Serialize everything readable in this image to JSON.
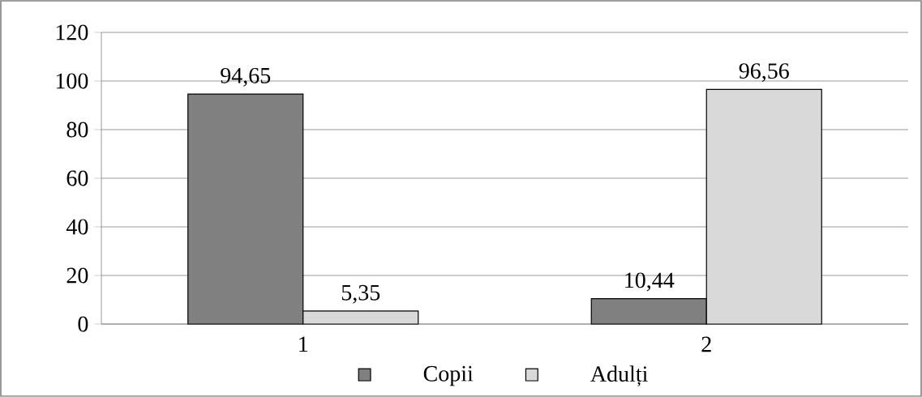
{
  "chart_data": {
    "type": "bar",
    "categories": [
      "1",
      "2"
    ],
    "series": [
      {
        "name": "Copii",
        "color": "#808080",
        "values": [
          94.65,
          10.44
        ],
        "value_labels": [
          "94,65",
          "10,44"
        ]
      },
      {
        "name": "Adulți",
        "color": "#d9d9d9",
        "values": [
          5.35,
          96.56
        ],
        "value_labels": [
          "5,35",
          "96,56"
        ]
      }
    ],
    "ylim": [
      0,
      120
    ],
    "yticks": [
      0,
      20,
      40,
      60,
      80,
      100,
      120
    ],
    "grid": "y",
    "legend": "bottom"
  }
}
